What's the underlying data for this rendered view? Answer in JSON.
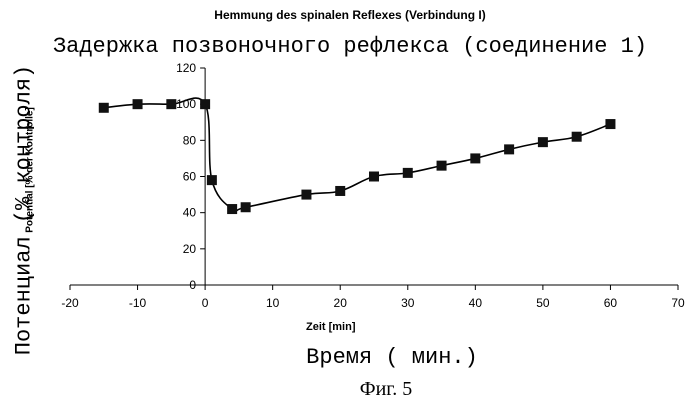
{
  "chart_data": {
    "type": "line",
    "title": "Hemmung des spinalen Reflexes (Verbindung I)",
    "subtitle": "Задержка позвоночного рефлекса (соединение 1)",
    "xlabel": "Zeit [min]",
    "xlabel_ru": "Время ( мин.)",
    "ylabel": "Potential [% der Kontrolle]",
    "ylabel_ru": "Потенциал (% контроля)",
    "caption": "Фиг. 5",
    "xlim": [
      -20,
      70
    ],
    "ylim": [
      0,
      120
    ],
    "xticks": [
      -20,
      -10,
      0,
      10,
      20,
      30,
      40,
      50,
      60,
      70
    ],
    "yticks": [
      0,
      20,
      40,
      60,
      80,
      100,
      120
    ],
    "grid": false,
    "legend": "none",
    "line_color": "#000000",
    "series": [
      {
        "x": [
          -15,
          -10,
          -5,
          0,
          1,
          4,
          6,
          15,
          20,
          25,
          30,
          35,
          40,
          45,
          50,
          55,
          60
        ],
        "y": [
          98,
          100,
          100,
          100,
          58,
          42,
          43,
          50,
          52,
          60,
          62,
          66,
          70,
          75,
          79,
          82,
          89
        ]
      }
    ]
  }
}
